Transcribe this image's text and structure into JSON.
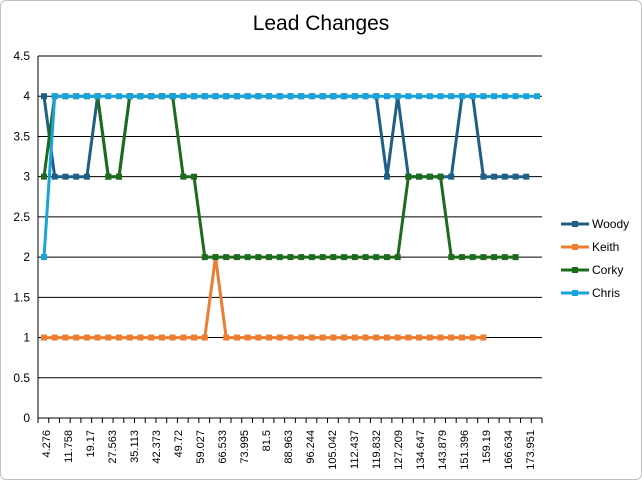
{
  "chart_data": {
    "type": "line",
    "title": "Lead Changes",
    "xlabel": "",
    "ylabel": "",
    "ylim": [
      0,
      4.5
    ],
    "yticks": [
      0,
      0.5,
      1,
      1.5,
      2,
      2.5,
      3,
      3.5,
      4,
      4.5
    ],
    "x_tick_labels": [
      "4.276",
      "11.758",
      "19.17",
      "27.563",
      "35.113",
      "42.373",
      "49.72",
      "59.027",
      "66.533",
      "73.995",
      "81.5",
      "88.963",
      "96.244",
      "105.042",
      "112.437",
      "119.832",
      "127.209",
      "134.647",
      "143.879",
      "151.396",
      "159.19",
      "166.634",
      "173.951"
    ],
    "grid": true,
    "legend_position": "right",
    "series": [
      {
        "name": "Woody",
        "color": "#1f5f87",
        "values": [
          4,
          3,
          3,
          3,
          3,
          4,
          3,
          3,
          4,
          4,
          4,
          4,
          4,
          4,
          4,
          4,
          4,
          4,
          4,
          4,
          4,
          4,
          4,
          4,
          4,
          4,
          4,
          4,
          4,
          4,
          4,
          4,
          3,
          4,
          3,
          3,
          3,
          3,
          3,
          4,
          4,
          3,
          3,
          3,
          3,
          3
        ]
      },
      {
        "name": "Keith",
        "color": "#ed7d31",
        "values": [
          1,
          1,
          1,
          1,
          1,
          1,
          1,
          1,
          1,
          1,
          1,
          1,
          1,
          1,
          1,
          1,
          2,
          1,
          1,
          1,
          1,
          1,
          1,
          1,
          1,
          1,
          1,
          1,
          1,
          1,
          1,
          1,
          1,
          1,
          1,
          1,
          1,
          1,
          1,
          1,
          1,
          1
        ]
      },
      {
        "name": "Corky",
        "color": "#1e6b1e",
        "values": [
          3,
          4,
          4,
          4,
          4,
          4,
          3,
          3,
          4,
          4,
          4,
          4,
          4,
          3,
          3,
          2,
          2,
          2,
          2,
          2,
          2,
          2,
          2,
          2,
          2,
          2,
          2,
          2,
          2,
          2,
          2,
          2,
          2,
          2,
          3,
          3,
          3,
          3,
          2,
          2,
          2,
          2,
          2,
          2,
          2
        ]
      },
      {
        "name": "Chris",
        "color": "#1aa3d9",
        "values": [
          2,
          4,
          4,
          4,
          4,
          4,
          4,
          4,
          4,
          4,
          4,
          4,
          4,
          4,
          4,
          4,
          4,
          4,
          4,
          4,
          4,
          4,
          4,
          4,
          4,
          4,
          4,
          4,
          4,
          4,
          4,
          4,
          4,
          4,
          4,
          4,
          4,
          4,
          4,
          4,
          4,
          4,
          4,
          4,
          4,
          4,
          4
        ]
      }
    ]
  }
}
